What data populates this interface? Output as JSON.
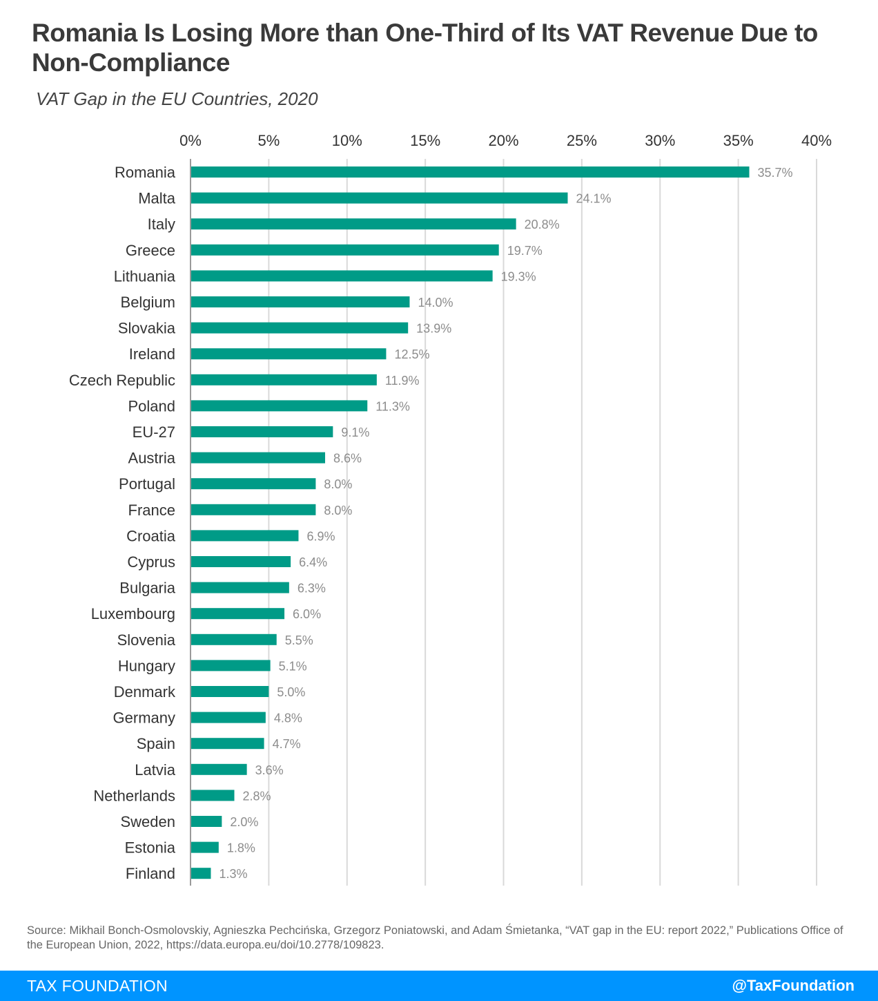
{
  "title": "Romania Is Losing More than One-Third of Its VAT Revenue Due to Non-Compliance",
  "subtitle": "VAT Gap in the EU Countries, 2020",
  "source": "Source: Mikhail Bonch-Osmolovskiy, Agnieszka Pechcińska, Grzegorz Poniatowski, and Adam Śmietanka, “VAT gap in the EU: report 2022,” Publications Office of the European Union, 2022, https://data.europa.eu/doi/10.2778/109823.",
  "footer": {
    "brand": "TAX FOUNDATION",
    "handle": "@TaxFoundation"
  },
  "colors": {
    "bar": "#009b87",
    "footer": "#0094ff",
    "grid": "#d9d9d9",
    "value_label": "#8c8c8c"
  },
  "chart_data": {
    "type": "bar",
    "orientation": "horizontal",
    "categories": [
      "Romania",
      "Malta",
      "Italy",
      "Greece",
      "Lithuania",
      "Belgium",
      "Slovakia",
      "Ireland",
      "Czech Republic",
      "Poland",
      "EU-27",
      "Austria",
      "Portugal",
      "France",
      "Croatia",
      "Cyprus",
      "Bulgaria",
      "Luxembourg",
      "Slovenia",
      "Hungary",
      "Denmark",
      "Germany",
      "Spain",
      "Latvia",
      "Netherlands",
      "Sweden",
      "Estonia",
      "Finland"
    ],
    "values": [
      35.7,
      24.1,
      20.8,
      19.7,
      19.3,
      14.0,
      13.9,
      12.5,
      11.9,
      11.3,
      9.1,
      8.6,
      8.0,
      8.0,
      6.9,
      6.4,
      6.3,
      6.0,
      5.5,
      5.1,
      5.0,
      4.8,
      4.7,
      3.6,
      2.8,
      2.0,
      1.8,
      1.3
    ],
    "value_labels": [
      "35.7%",
      "24.1%",
      "20.8%",
      "19.7%",
      "19.3%",
      "14.0%",
      "13.9%",
      "12.5%",
      "11.9%",
      "11.3%",
      "9.1%",
      "8.6%",
      "8.0%",
      "8.0%",
      "6.9%",
      "6.4%",
      "6.3%",
      "6.0%",
      "5.5%",
      "5.1%",
      "5.0%",
      "4.8%",
      "4.7%",
      "3.6%",
      "2.8%",
      "2.0%",
      "1.8%",
      "1.3%"
    ],
    "xlim": [
      0,
      40
    ],
    "x_ticks": [
      0,
      5,
      10,
      15,
      20,
      25,
      30,
      35,
      40
    ],
    "x_tick_labels": [
      "0%",
      "5%",
      "10%",
      "15%",
      "20%",
      "25%",
      "30%",
      "35%",
      "40%"
    ],
    "axis_position": "top",
    "grid": true,
    "legend": false
  }
}
